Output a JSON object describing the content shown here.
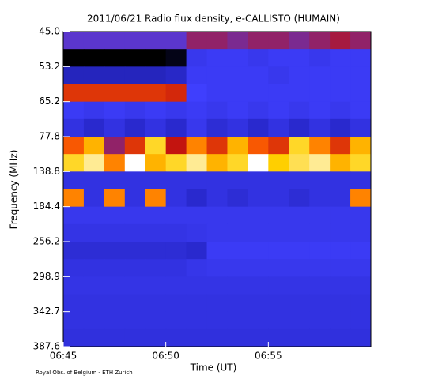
{
  "chart_data": {
    "type": "heatmap",
    "title": "2011/06/21  Radio flux density, e-CALLISTO (HUMAIN)",
    "x_label": "Time (UT)",
    "y_label": "Frequency (MHz)",
    "credit": "Royal Obs. of Belgium - ETH Zurich",
    "xlim": [
      "06:45",
      "07:00"
    ],
    "xticks": [
      "06:45",
      "06:50",
      "06:55"
    ],
    "ylim": [
      45,
      387.6
    ],
    "yticks": [
      {
        "value": 45,
        "label": "45.0"
      },
      53.2,
      65.2,
      77.8,
      138.8,
      184.4,
      256.2,
      298.9,
      342.7,
      387.6
    ],
    "colorscale": [
      "#000000",
      "#10105a",
      "#2020a8",
      "#2a2ad0",
      "#4040ff",
      "#c01010",
      "#ff6000",
      "#ffd000",
      "#ffffff"
    ],
    "values": [
      [
        55,
        55,
        55,
        55,
        55,
        55,
        60,
        60,
        58,
        60,
        60,
        58,
        60,
        62,
        60
      ],
      [
        5,
        5,
        5,
        5,
        5,
        8,
        48,
        50,
        50,
        48,
        50,
        50,
        48,
        50,
        50
      ],
      [
        35,
        35,
        35,
        35,
        35,
        38,
        50,
        50,
        50,
        50,
        48,
        50,
        50,
        50,
        50
      ],
      [
        70,
        70,
        70,
        70,
        70,
        68,
        52,
        50,
        50,
        50,
        50,
        50,
        50,
        50,
        50
      ],
      [
        50,
        48,
        50,
        48,
        50,
        48,
        50,
        48,
        50,
        48,
        50,
        48,
        50,
        48,
        50
      ],
      [
        45,
        40,
        45,
        40,
        45,
        40,
        48,
        42,
        45,
        40,
        45,
        40,
        45,
        40,
        45
      ],
      [
        75,
        85,
        60,
        70,
        90,
        65,
        80,
        70,
        85,
        75,
        70,
        90,
        80,
        70,
        85
      ],
      [
        90,
        95,
        80,
        100,
        85,
        90,
        95,
        85,
        90,
        100,
        88,
        92,
        95,
        85,
        90
      ],
      [
        45,
        45,
        45,
        45,
        45,
        45,
        45,
        45,
        45,
        45,
        45,
        45,
        45,
        45,
        45
      ],
      [
        80,
        45,
        80,
        45,
        80,
        45,
        40,
        45,
        42,
        45,
        45,
        42,
        45,
        45,
        80
      ],
      [
        48,
        48,
        48,
        48,
        48,
        48,
        48,
        48,
        48,
        48,
        48,
        48,
        48,
        48,
        48
      ],
      [
        46,
        46,
        46,
        46,
        46,
        46,
        47,
        48,
        48,
        48,
        48,
        48,
        48,
        48,
        48
      ],
      [
        42,
        42,
        42,
        42,
        42,
        42,
        40,
        50,
        50,
        50,
        50,
        50,
        50,
        50,
        50
      ],
      [
        45,
        45,
        45,
        45,
        45,
        45,
        47,
        48,
        48,
        48,
        48,
        48,
        48,
        48,
        48
      ],
      [
        46,
        46,
        46,
        46,
        46,
        46,
        46,
        46,
        46,
        46,
        46,
        46,
        46,
        46,
        46
      ],
      [
        45,
        45,
        45,
        45,
        45,
        45,
        45,
        45,
        45,
        45,
        45,
        45,
        45,
        45,
        45
      ],
      [
        45,
        45,
        45,
        45,
        45,
        45,
        45,
        45,
        45,
        45,
        45,
        45,
        45,
        45,
        45
      ],
      [
        44,
        44,
        44,
        44,
        44,
        44,
        44,
        44,
        44,
        44,
        44,
        44,
        44,
        44,
        44
      ]
    ]
  }
}
